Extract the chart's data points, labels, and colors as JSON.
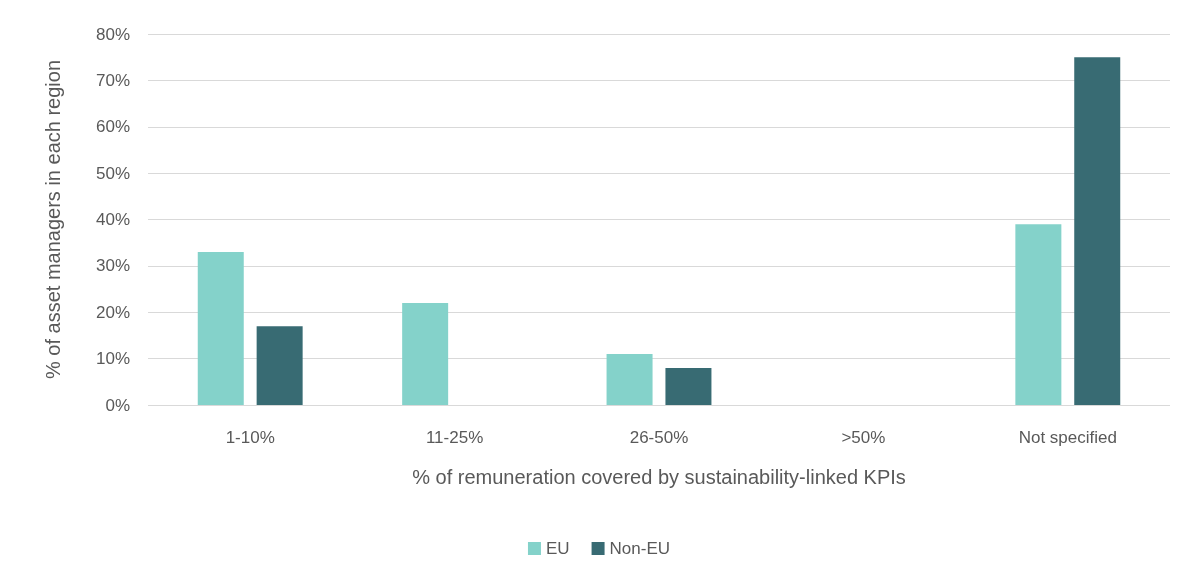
{
  "chart_data": {
    "type": "bar",
    "xlabel": "% of remuneration covered by sustainability-linked KPIs",
    "ylabel": "% of asset managers in each region",
    "categories": [
      "1-10%",
      "11-25%",
      "26-50%",
      ">50%",
      "Not specified"
    ],
    "series": [
      {
        "name": "EU",
        "color": "#84d2ca",
        "values": [
          33,
          22,
          11,
          0,
          39
        ]
      },
      {
        "name": "Non-EU",
        "color": "#386b73",
        "values": [
          17,
          0,
          8,
          0,
          75
        ]
      }
    ],
    "ylim": [
      0,
      80
    ],
    "yticks": [
      {
        "value": 0,
        "label": "0%"
      },
      {
        "value": 10,
        "label": "10%"
      },
      {
        "value": 20,
        "label": "20%"
      },
      {
        "value": 30,
        "label": "30%"
      },
      {
        "value": 40,
        "label": "40%"
      },
      {
        "value": 50,
        "label": "50%"
      },
      {
        "value": 60,
        "label": "60%"
      },
      {
        "value": 70,
        "label": "70%"
      },
      {
        "value": 80,
        "label": "80%"
      }
    ],
    "grid": "y",
    "legend": "bottom"
  }
}
